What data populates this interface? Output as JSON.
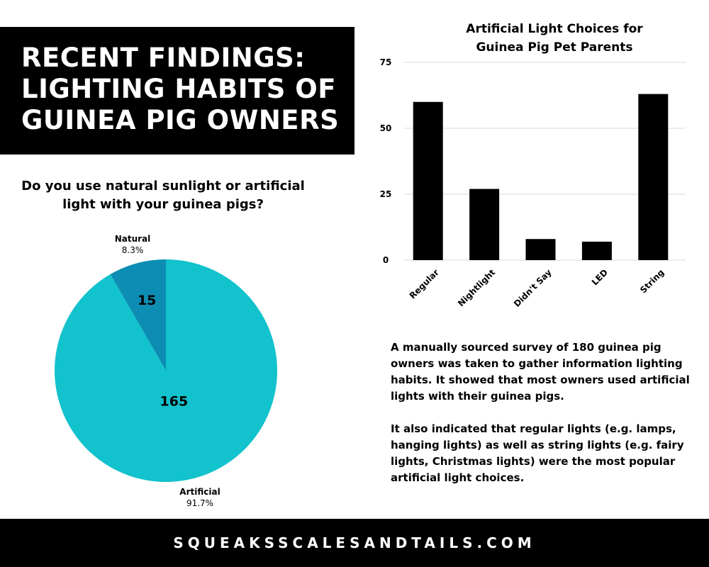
{
  "header": {
    "title_lines": [
      "RECENT FINDINGS:",
      "LIGHTING HABITS OF",
      "GUINEA PIG OWNERS"
    ]
  },
  "pie_section": {
    "question_lines": [
      "Do you use natural sunlight or artificial",
      "light with your guinea pigs?"
    ]
  },
  "description": {
    "paragraph1": "A manually sourced survey of 180 guinea pig owners was taken to gather information lighting habits.  It showed that most owners used artificial lights with their guinea pigs.",
    "paragraph2": "It also indicated that regular lights (e.g. lamps, hanging lights) as well as string lights (e.g. fairy lights, Christmas lights) were the most popular artificial light choices."
  },
  "footer": {
    "site": "SQUEAKSSCALESANDTAILS.COM"
  },
  "colors": {
    "artificial": "#12C2CC",
    "natural": "#0D8DB3",
    "bars": "#000000",
    "grid": "#d9d9d9"
  },
  "chart_data": [
    {
      "type": "pie",
      "slices": [
        {
          "label": "Natural",
          "value": 15,
          "percent": "8.3%"
        },
        {
          "label": "Artificial",
          "value": 165,
          "percent": "91.7%"
        }
      ]
    },
    {
      "type": "bar",
      "title_lines": [
        "Artificial Light Choices for",
        "Guinea Pig Pet Parents"
      ],
      "categories": [
        "Regular",
        "Nightlight",
        "Didn't Say",
        "LED",
        "String"
      ],
      "values": [
        60,
        27,
        8,
        7,
        63
      ],
      "ylim": [
        0,
        75
      ],
      "yticks": [
        0,
        25,
        50,
        75
      ],
      "grid": true
    }
  ]
}
